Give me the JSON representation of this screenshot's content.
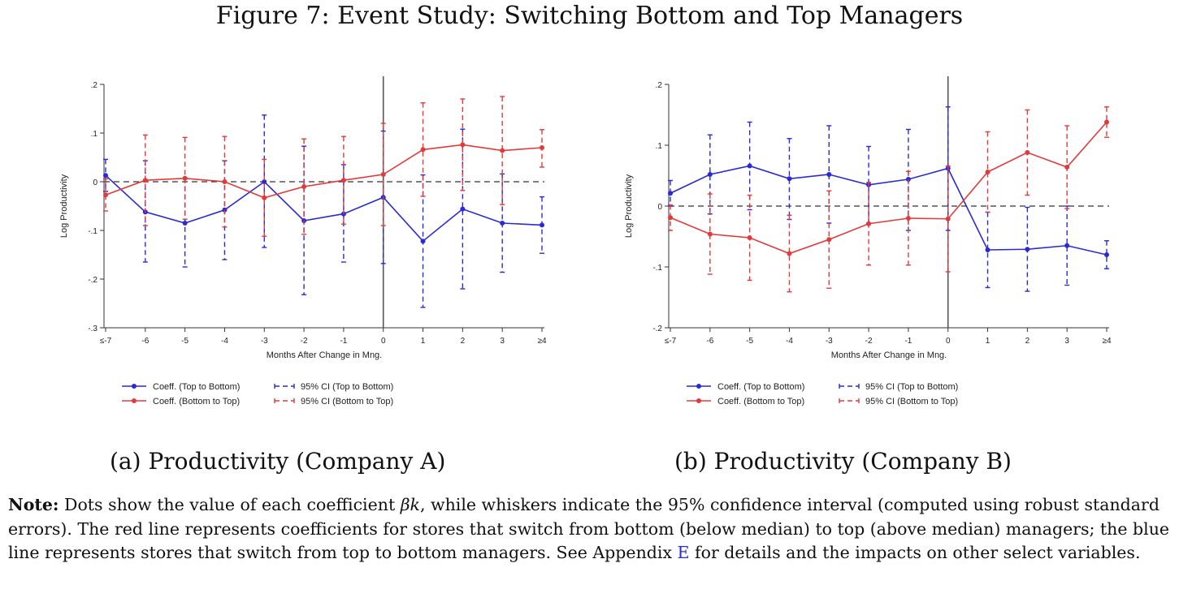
{
  "figure": {
    "title": "Figure 7: Event Study: Switching Bottom and Top Managers",
    "note_label": "Note:",
    "note_part1": " Dots show the value of each coefficient ",
    "note_symbol": "βk",
    "note_part2": ", while whiskers indicate the 95% confidence interval (computed using robust standard errors). The red line represents coefficients for stores that switch from bottom (below median) to top (above median) managers; the blue line represents stores that switch from top to bottom managers. See Appendix ",
    "note_link": "E",
    "note_part3": " for details and the impacts on other select variables."
  },
  "colors": {
    "top_to_bottom": "#2a2ad4",
    "bottom_to_top": "#e23a3a",
    "axis": "#333333"
  },
  "chart_data": [
    {
      "type": "line",
      "caption": "(a) Productivity (Company A)",
      "xlabel": "Months After Change in Mng.",
      "ylabel": "Log Productivity",
      "categories": [
        "≤-7",
        "-6",
        "-5",
        "-4",
        "-3",
        "-2",
        "-1",
        "0",
        "1",
        "2",
        "3",
        "≥4"
      ],
      "ylim": [
        -0.3,
        0.2
      ],
      "yticks": [
        0.2,
        0.1,
        0,
        -0.1,
        -0.2,
        -0.3
      ],
      "ytick_labels": [
        ".2",
        ".1",
        "0",
        "-.1",
        "-.2",
        "-.3"
      ],
      "event_index": 7,
      "series": [
        {
          "name": "Coeff. (Top to Bottom)",
          "ci_name": "95% CI (Top to Bottom)",
          "color_key": "top_to_bottom",
          "values": [
            0.013,
            -0.062,
            -0.085,
            -0.058,
            0.0,
            -0.08,
            -0.066,
            -0.032,
            -0.122,
            -0.056,
            -0.085,
            -0.089
          ],
          "lower": [
            -0.02,
            -0.165,
            -0.175,
            -0.16,
            -0.135,
            -0.232,
            -0.165,
            -0.168,
            -0.258,
            -0.22,
            -0.186,
            -0.147
          ],
          "upper": [
            0.046,
            0.043,
            0.007,
            0.043,
            0.137,
            0.073,
            0.035,
            0.104,
            0.014,
            0.108,
            0.016,
            -0.031
          ]
        },
        {
          "name": "Coeff. (Bottom to Top)",
          "ci_name": "95% CI (Bottom to Top)",
          "color_key": "bottom_to_top",
          "values": [
            -0.027,
            0.003,
            0.007,
            0.0,
            -0.033,
            -0.01,
            0.003,
            0.015,
            0.066,
            0.076,
            0.064,
            0.07
          ],
          "lower": [
            -0.06,
            -0.09,
            -0.077,
            -0.093,
            -0.112,
            -0.108,
            -0.087,
            -0.09,
            -0.03,
            -0.018,
            -0.047,
            0.03
          ],
          "upper": [
            0.006,
            0.096,
            0.091,
            0.093,
            0.046,
            0.088,
            0.093,
            0.12,
            0.162,
            0.17,
            0.175,
            0.107
          ]
        }
      ]
    },
    {
      "type": "line",
      "caption": "(b) Productivity (Company B)",
      "xlabel": "Months After Change in Mng.",
      "ylabel": "Log Productivity",
      "categories": [
        "≤-7",
        "-6",
        "-5",
        "-4",
        "-3",
        "-2",
        "-1",
        "0",
        "1",
        "2",
        "3",
        "≥4"
      ],
      "ylim": [
        -0.2,
        0.2
      ],
      "yticks": [
        0.2,
        0.1,
        0,
        -0.1,
        -0.2
      ],
      "ytick_labels": [
        ".2",
        ".1",
        "0",
        "-.1",
        "-.2"
      ],
      "event_index": 7,
      "series": [
        {
          "name": "Coeff. (Top to Bottom)",
          "ci_name": "95% CI (Top to Bottom)",
          "color_key": "top_to_bottom",
          "values": [
            0.021,
            0.052,
            0.066,
            0.045,
            0.052,
            0.035,
            0.044,
            0.062,
            -0.072,
            -0.071,
            -0.065,
            -0.08
          ],
          "lower": [
            0.0,
            -0.013,
            -0.006,
            -0.022,
            -0.028,
            -0.028,
            -0.04,
            -0.04,
            -0.134,
            -0.14,
            -0.13,
            -0.103
          ],
          "upper": [
            0.042,
            0.117,
            0.138,
            0.111,
            0.132,
            0.098,
            0.126,
            0.163,
            -0.01,
            -0.002,
            0.0,
            -0.057
          ]
        },
        {
          "name": "Coeff. (Bottom to Top)",
          "ci_name": "95% CI (Bottom to Top)",
          "color_key": "bottom_to_top",
          "values": [
            -0.019,
            -0.046,
            -0.052,
            -0.078,
            -0.055,
            -0.029,
            -0.02,
            -0.021,
            0.056,
            0.088,
            0.064,
            0.138
          ],
          "lower": [
            -0.04,
            -0.112,
            -0.122,
            -0.141,
            -0.135,
            -0.097,
            -0.097,
            -0.108,
            -0.01,
            0.018,
            -0.004,
            0.113
          ],
          "upper": [
            0.002,
            0.02,
            0.018,
            -0.015,
            0.025,
            0.039,
            0.057,
            0.066,
            0.122,
            0.158,
            0.132,
            0.163
          ]
        }
      ]
    }
  ]
}
